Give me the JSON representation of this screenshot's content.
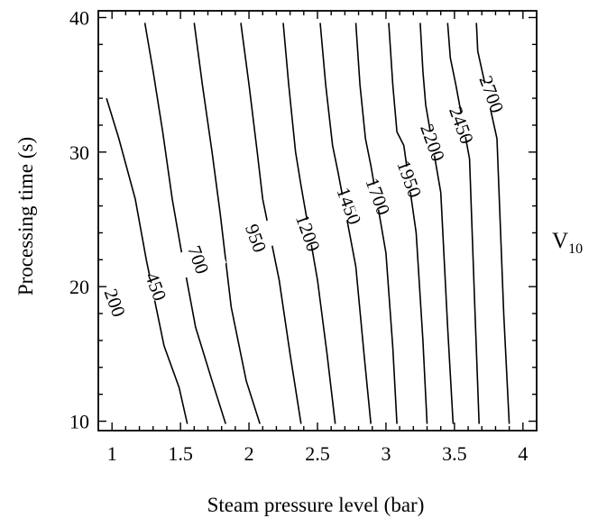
{
  "chart_data": {
    "type": "contour",
    "xlabel": "Steam pressure level (bar)",
    "ylabel": "Processing time (s)",
    "side_label_main": "V",
    "side_label_sub": "10",
    "xlim": [
      0.9,
      4.1
    ],
    "ylim": [
      9.3,
      40.5
    ],
    "x_ticks": [
      1,
      1.5,
      2,
      2.5,
      3,
      3.5,
      4
    ],
    "x_tick_labels": [
      "1",
      "1.5",
      "2",
      "2.5",
      "3",
      "3.5",
      "4"
    ],
    "y_ticks": [
      10,
      20,
      30,
      40
    ],
    "y_tick_labels": [
      "10",
      "20",
      "30",
      "40"
    ],
    "contours": [
      {
        "level": "200",
        "label_at": [
          1.02,
          18.8
        ],
        "points": [
          [
            0.96,
            34.0
          ],
          [
            1.05,
            31.0
          ],
          [
            1.17,
            26.5
          ],
          [
            1.25,
            22.0
          ],
          [
            1.38,
            15.6
          ],
          [
            1.49,
            12.5
          ],
          [
            1.55,
            9.8
          ]
        ]
      },
      {
        "level": "450",
        "label_at": [
          1.32,
          20.0
        ],
        "points": [
          [
            1.24,
            39.6
          ],
          [
            1.3,
            36.0
          ],
          [
            1.37,
            31.5
          ],
          [
            1.44,
            26.5
          ],
          [
            1.5,
            23.0
          ],
          [
            1.61,
            17.0
          ],
          [
            1.73,
            13.0
          ],
          [
            1.83,
            9.8
          ]
        ]
      },
      {
        "level": "700",
        "label_at": [
          1.63,
          22.0
        ],
        "points": [
          [
            1.6,
            39.6
          ],
          [
            1.66,
            35.0
          ],
          [
            1.73,
            30.0
          ],
          [
            1.79,
            25.4
          ],
          [
            1.87,
            18.5
          ],
          [
            1.98,
            13.0
          ],
          [
            2.08,
            9.8
          ]
        ]
      },
      {
        "level": "950",
        "label_at": [
          2.05,
          23.6
        ],
        "points": [
          [
            1.94,
            39.6
          ],
          [
            2.0,
            35.0
          ],
          [
            2.06,
            30.0
          ],
          [
            2.1,
            26.5
          ],
          [
            2.22,
            20.5
          ],
          [
            2.3,
            15.0
          ],
          [
            2.38,
            9.8
          ]
        ]
      },
      {
        "level": "1200",
        "label_at": [
          2.43,
          24.0
        ],
        "points": [
          [
            2.25,
            39.6
          ],
          [
            2.29,
            35.0
          ],
          [
            2.34,
            30.0
          ],
          [
            2.38,
            27.5
          ],
          [
            2.5,
            20.5
          ],
          [
            2.57,
            15.0
          ],
          [
            2.63,
            9.8
          ]
        ]
      },
      {
        "level": "1450",
        "label_at": [
          2.73,
          26.0
        ],
        "points": [
          [
            2.52,
            39.6
          ],
          [
            2.56,
            35.0
          ],
          [
            2.61,
            30.5
          ],
          [
            2.65,
            28.5
          ],
          [
            2.78,
            21.5
          ],
          [
            2.84,
            15.0
          ],
          [
            2.89,
            9.8
          ]
        ]
      },
      {
        "level": "1700",
        "label_at": [
          2.94,
          26.7
        ],
        "points": [
          [
            2.78,
            39.6
          ],
          [
            2.81,
            35.0
          ],
          [
            2.85,
            31.0
          ],
          [
            2.89,
            29.0
          ],
          [
            3.0,
            22.5
          ],
          [
            3.05,
            15.5
          ],
          [
            3.08,
            9.8
          ]
        ]
      },
      {
        "level": "1950",
        "label_at": [
          3.17,
          28.0
        ],
        "points": [
          [
            3.02,
            39.6
          ],
          [
            3.05,
            35.0
          ],
          [
            3.08,
            31.5
          ],
          [
            3.13,
            30.5
          ],
          [
            3.22,
            24.0
          ],
          [
            3.27,
            16.0
          ],
          [
            3.3,
            9.8
          ]
        ]
      },
      {
        "level": "2200",
        "label_at": [
          3.34,
          30.7
        ],
        "points": [
          [
            3.25,
            39.6
          ],
          [
            3.27,
            36.0
          ],
          [
            3.29,
            33.5
          ],
          [
            3.4,
            27.0
          ],
          [
            3.45,
            17.0
          ],
          [
            3.49,
            9.8
          ]
        ]
      },
      {
        "level": "2450",
        "label_at": [
          3.55,
          32.0
        ],
        "points": [
          [
            3.45,
            39.6
          ],
          [
            3.47,
            37.0
          ],
          [
            3.51,
            35.0
          ],
          [
            3.61,
            29.5
          ],
          [
            3.65,
            18.0
          ],
          [
            3.68,
            9.8
          ]
        ]
      },
      {
        "level": "2700",
        "label_at": [
          3.77,
          34.3
        ],
        "points": [
          [
            3.66,
            39.6
          ],
          [
            3.67,
            37.5
          ],
          [
            3.81,
            31.0
          ],
          [
            3.86,
            18.0
          ],
          [
            3.9,
            9.8
          ]
        ]
      }
    ]
  }
}
